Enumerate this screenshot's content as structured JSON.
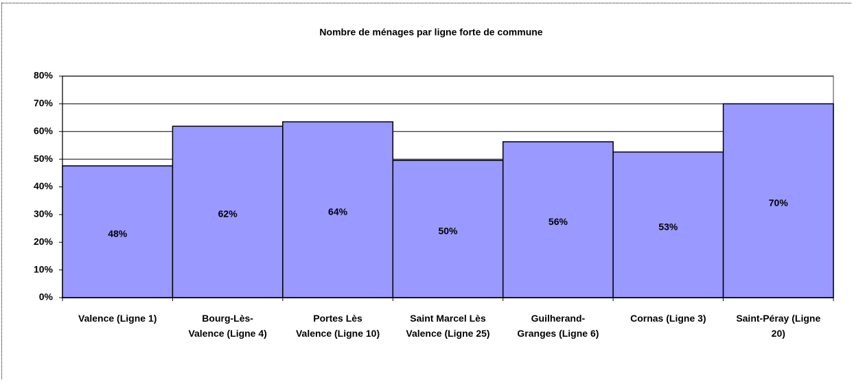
{
  "chart_data": {
    "type": "bar",
    "title": "Nombre de ménages par ligne forte de commune",
    "categories": [
      "Valence (Ligne 1)",
      "Bourg-Lès-Valence (Ligne 4)",
      "Portes Lès Valence (Ligne 10)",
      "Saint Marcel Lès Valence (Ligne 25)",
      "Guilherand-Granges (Ligne 6)",
      "Cornas (Ligne 3)",
      "Saint-Péray (Ligne 20)"
    ],
    "values": [
      47.6,
      61.9,
      63.5,
      49.6,
      56.3,
      52.6,
      70
    ],
    "value_labels": [
      "48%",
      "62%",
      "64%",
      "50%",
      "56%",
      "53%",
      "70%"
    ],
    "color": "#9999ff",
    "ylim": [
      0,
      80
    ],
    "yticks": [
      {
        "value": 0,
        "label": "0%"
      },
      {
        "value": 10,
        "label": "10%"
      },
      {
        "value": 20,
        "label": "20%"
      },
      {
        "value": 30,
        "label": "30%"
      },
      {
        "value": 40,
        "label": "40%"
      },
      {
        "value": 50,
        "label": "50%"
      },
      {
        "value": 60,
        "label": "60%"
      },
      {
        "value": 70,
        "label": "70%"
      },
      {
        "value": 80,
        "label": "80%"
      }
    ],
    "grid": true
  }
}
